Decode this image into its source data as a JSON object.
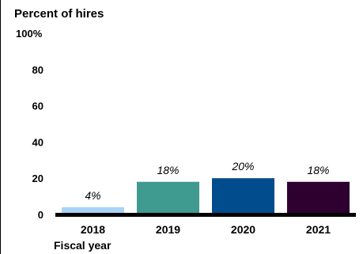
{
  "chart_data": {
    "type": "bar",
    "ylabel": "Percent of hires",
    "xlabel": "Fiscal year",
    "categories": [
      "2018",
      "2019",
      "2020",
      "2021"
    ],
    "values": [
      4,
      18,
      20,
      18
    ],
    "data_labels": [
      "4%",
      "18%",
      "20%",
      "18%"
    ],
    "colors": [
      "#a9d3f5",
      "#3f9a8f",
      "#004c8c",
      "#2d0030"
    ],
    "ylim": [
      0,
      100
    ],
    "yticks": [
      {
        "value": 0,
        "label": "0"
      },
      {
        "value": 20,
        "label": "20"
      },
      {
        "value": 40,
        "label": "40"
      },
      {
        "value": 60,
        "label": "60"
      },
      {
        "value": 80,
        "label": "80"
      },
      {
        "value": 100,
        "label": "100%"
      }
    ],
    "grid": false,
    "legend": "none"
  }
}
